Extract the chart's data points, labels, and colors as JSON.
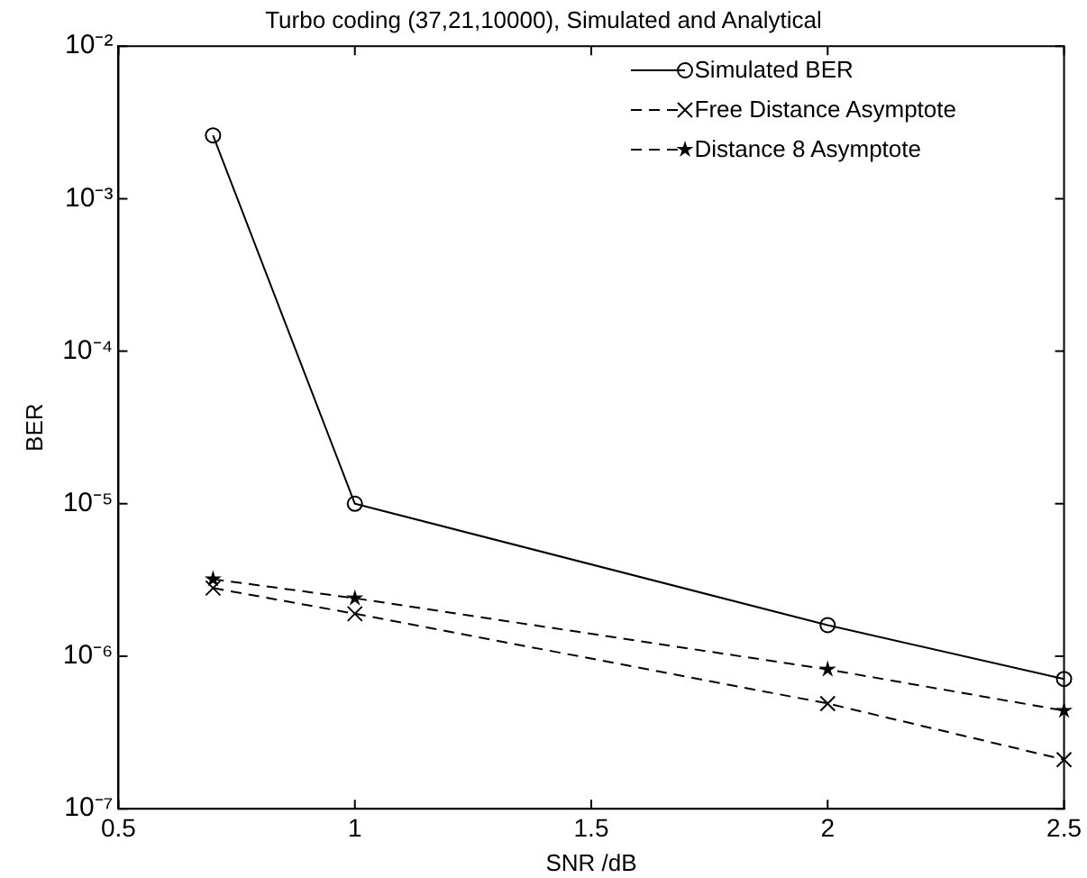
{
  "chart_data": {
    "type": "line",
    "title": "Turbo coding (37,21,10000), Simulated and Analytical",
    "xlabel": "SNR /dB",
    "ylabel": "BER",
    "x": [
      0.7,
      1,
      2,
      2.5
    ],
    "series": [
      {
        "name": "Simulated BER",
        "color": "#000000",
        "marker": "circle",
        "line_style": "solid",
        "values": [
          0.0026,
          1e-05,
          1.6e-06,
          7.1e-07
        ]
      },
      {
        "name": "Free Distance Asymptote",
        "color": "#000000",
        "marker": "cross",
        "line_style": "dashed",
        "values": [
          2.8e-06,
          1.9e-06,
          4.9e-07,
          2.1e-07
        ]
      },
      {
        "name": "Distance 8 Asymptote",
        "color": "#000000",
        "marker": "star",
        "line_style": "dashed",
        "values": [
          3.2e-06,
          2.4e-06,
          8.2e-07,
          4.4e-07
        ]
      }
    ],
    "log": "y",
    "grid": false,
    "legend": "top right",
    "xlim": [
      0.5,
      2.5
    ],
    "xticks": [
      0.5,
      1,
      1.5,
      2,
      2.5
    ],
    "ylim": [
      1e-07,
      0.01
    ],
    "yticks": [
      {
        "value": 1e-07,
        "label": "10⁻⁷"
      },
      {
        "value": 1e-06,
        "label": "10⁻⁶"
      },
      {
        "value": 1e-05,
        "label": "10⁻⁵"
      },
      {
        "value": 0.0001,
        "label": "10⁻⁴"
      },
      {
        "value": 0.001,
        "label": "10⁻³"
      },
      {
        "value": 0.01,
        "label": "10⁻²"
      }
    ]
  }
}
